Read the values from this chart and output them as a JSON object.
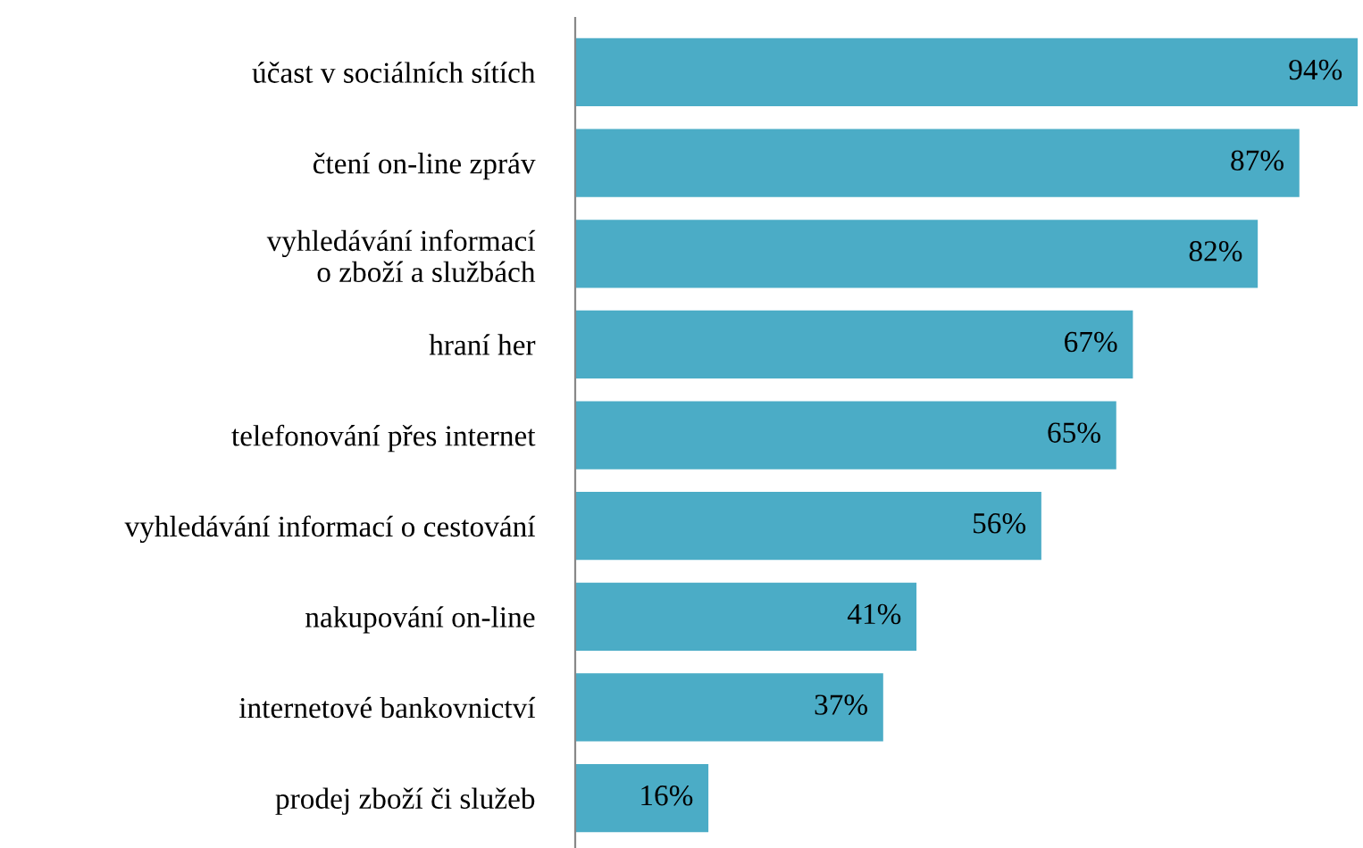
{
  "chart_data": {
    "type": "bar",
    "orientation": "horizontal",
    "data_labels": true,
    "categories": [
      "účast v sociálních sítích",
      "čtení on-line zpráv",
      "vyhledávání informací\no zboží a službách",
      "hraní her",
      "telefonování přes internet",
      "vyhledávání informací o cestování",
      "nakupování on-line",
      "internetové bankovnictví",
      "prodej zboží či služeb"
    ],
    "values": [
      94,
      87,
      82,
      67,
      65,
      56,
      41,
      37,
      16
    ],
    "value_labels": [
      "94%",
      "87%",
      "82%",
      "67%",
      "65%",
      "56%",
      "41%",
      "37%",
      "16%"
    ],
    "color": "#4bacc6",
    "grid": false,
    "legend": false,
    "tick_labels": "y"
  }
}
